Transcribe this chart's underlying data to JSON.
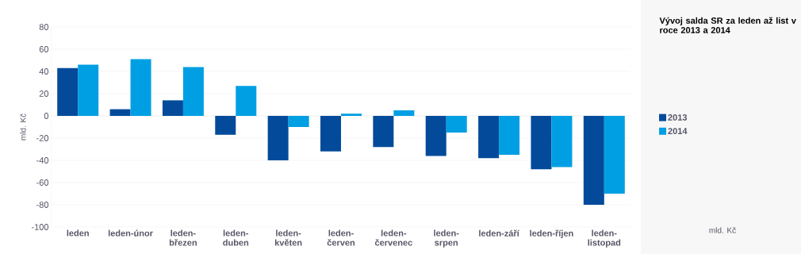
{
  "chart_data": {
    "type": "bar",
    "title": "Vývoj salda SR za leden až list v roce 2013 a 2014",
    "ylabel": "mld. Kč",
    "annotations": [
      "mld. Kč"
    ],
    "categories": [
      "leden",
      "leden-únor",
      "leden-březen",
      "leden-duben",
      "leden-květen",
      "leden-červen",
      "leden-červenec",
      "leden-srpen",
      "leden-září",
      "leden-říjen",
      "leden-listopad"
    ],
    "series": [
      {
        "name": "2013",
        "color": "#034b9a",
        "values": [
          43,
          6,
          14,
          -17,
          -40,
          -32,
          -28,
          -36,
          -38,
          -48,
          -80
        ]
      },
      {
        "name": "2014",
        "color": "#009fe3",
        "values": [
          46,
          51,
          44,
          27,
          -10,
          2,
          5,
          -15,
          -35,
          -46,
          -70
        ]
      }
    ],
    "ylim": [
      -100,
      80
    ],
    "yticks": [
      -100,
      -80,
      -60,
      -40,
      -20,
      0,
      20,
      40,
      60,
      80
    ],
    "grid": "y",
    "legend": "right"
  }
}
